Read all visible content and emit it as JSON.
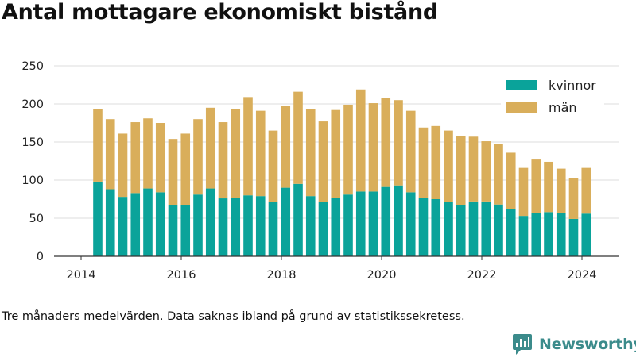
{
  "title": "Antal mottagare ekonomiskt bistånd",
  "caption": "Tre månaders medelvärden. Data saknas ibland på grund av statistikssekretess.",
  "brand": {
    "name": "Newsworthy",
    "icon": "chat-bubble-bar-chart-icon",
    "color": "#3b8b8b"
  },
  "chart_data": {
    "type": "bar",
    "stacked": true,
    "xlabel": "",
    "ylabel": "",
    "ylim": [
      0,
      250
    ],
    "yticks": [
      0,
      50,
      100,
      150,
      200,
      250
    ],
    "xticks": [
      "2014",
      "2016",
      "2018",
      "2020",
      "2022",
      "2024"
    ],
    "grid": "horizontal",
    "legend_position": "top-right",
    "categories": [
      "2014-04",
      "2014-07",
      "2014-10",
      "2015-01",
      "2015-04",
      "2015-07",
      "2015-10",
      "2016-01",
      "2016-04",
      "2016-07",
      "2016-10",
      "2017-01",
      "2017-04",
      "2017-07",
      "2017-10",
      "2018-01",
      "2018-04",
      "2018-07",
      "2018-10",
      "2019-01",
      "2019-04",
      "2019-07",
      "2019-10",
      "2020-01",
      "2020-04",
      "2020-07",
      "2020-10",
      "2021-01",
      "2021-04",
      "2021-07",
      "2021-10",
      "2022-01",
      "2022-04",
      "2022-07",
      "2022-10",
      "2023-01",
      "2023-04",
      "2023-07",
      "2023-10",
      "2024-01"
    ],
    "series": [
      {
        "name": "kvinnor",
        "color": "#0aa39a",
        "values": [
          98,
          88,
          78,
          83,
          89,
          84,
          67,
          67,
          81,
          89,
          76,
          77,
          80,
          79,
          71,
          90,
          95,
          79,
          71,
          77,
          81,
          85,
          85,
          91,
          93,
          84,
          77,
          75,
          71,
          67,
          72,
          72,
          68,
          62,
          53,
          57,
          58,
          57,
          49,
          56
        ]
      },
      {
        "name": "män",
        "color": "#d9ae5b",
        "values": [
          95,
          92,
          83,
          93,
          92,
          91,
          87,
          94,
          99,
          106,
          100,
          116,
          129,
          112,
          94,
          107,
          121,
          114,
          106,
          115,
          118,
          134,
          116,
          117,
          112,
          107,
          92,
          96,
          94,
          91,
          85,
          79,
          79,
          74,
          63,
          70,
          66,
          58,
          54,
          60
        ]
      }
    ]
  }
}
